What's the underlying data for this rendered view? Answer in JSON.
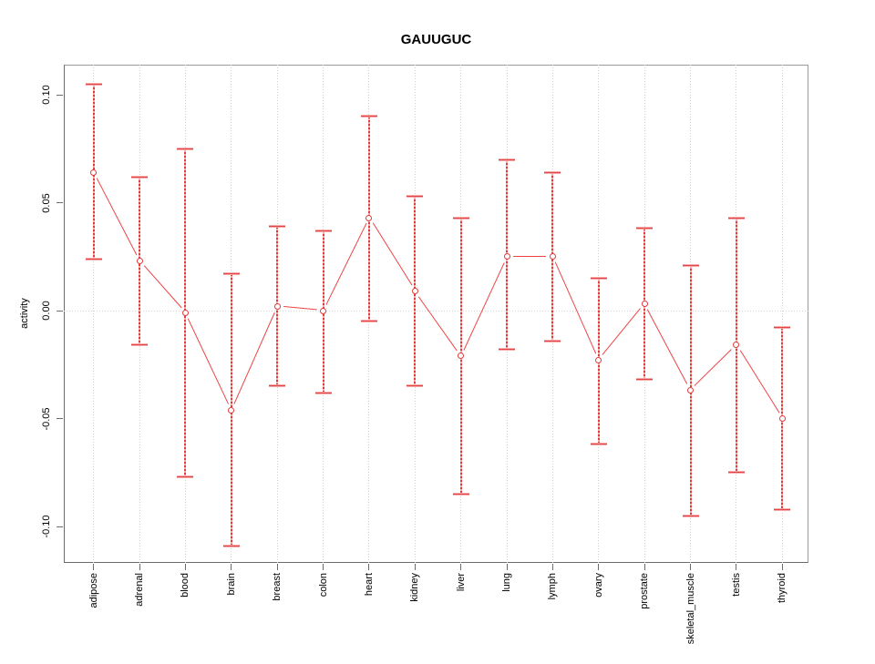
{
  "title": "GAUUGUC",
  "chart_data": {
    "type": "line",
    "title": "GAUUGUC",
    "ylabel": "activity",
    "categories": [
      "adipose",
      "adrenal",
      "blood",
      "brain",
      "breast",
      "colon",
      "heart",
      "kidney",
      "liver",
      "lung",
      "lymph",
      "ovary",
      "prostate",
      "skeletal_muscle",
      "testis",
      "thyroid"
    ],
    "series": [
      {
        "name": "activity",
        "values": [
          0.064,
          0.023,
          -0.001,
          -0.046,
          0.002,
          0.0,
          0.043,
          0.009,
          -0.021,
          0.025,
          0.025,
          -0.023,
          0.003,
          -0.037,
          -0.016,
          -0.05
        ],
        "error_upper": [
          0.105,
          0.062,
          0.075,
          0.017,
          0.039,
          0.037,
          0.09,
          0.053,
          0.043,
          0.07,
          0.064,
          0.015,
          0.038,
          0.021,
          0.043,
          -0.008
        ],
        "error_lower": [
          0.024,
          -0.016,
          -0.077,
          -0.109,
          -0.035,
          -0.038,
          -0.005,
          -0.035,
          -0.085,
          -0.018,
          -0.014,
          -0.062,
          -0.032,
          -0.095,
          -0.075,
          -0.092
        ]
      }
    ],
    "ytick_values": [
      0.1,
      0.05,
      0.0,
      -0.05,
      -0.1
    ],
    "ytick_labels": [
      "0.10",
      "0.05",
      "0.00",
      "-0.05",
      "-0.10"
    ],
    "ylim": [
      -0.117,
      0.113
    ],
    "grid": "vertical dotted gridlines at each category; dotted horizontal line at y=0",
    "legend": "none",
    "marker": "open-circle",
    "colors": {
      "series_line": "#ef4343",
      "error_bar_dark": "#e23b3b",
      "error_bar_light": "#f6a9a9",
      "grid": "#d2d2d2",
      "box": "#8a8a8a",
      "text": "#000000"
    }
  }
}
